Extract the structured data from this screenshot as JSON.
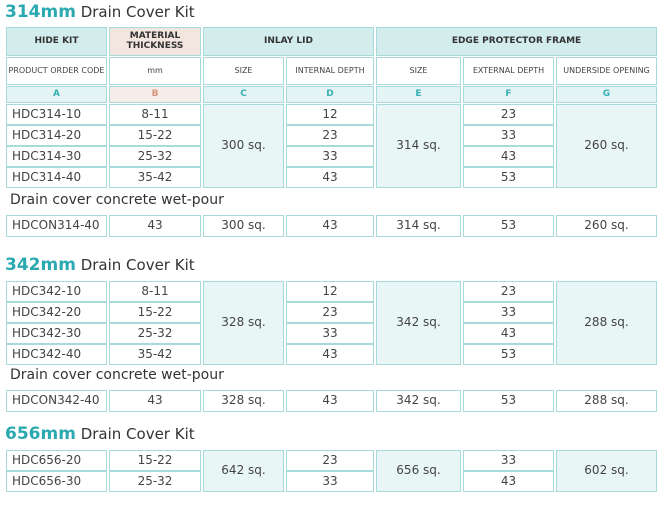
{
  "header": {
    "groups": [
      "HIDE KIT",
      "MATERIAL THICKNESS",
      "INLAY LID",
      "EDGE PROTECTOR FRAME"
    ],
    "columns": [
      "PRODUCT ORDER CODE",
      "mm",
      "SIZE",
      "INTERNAL DEPTH",
      "SIZE",
      "EXTERNAL DEPTH",
      "UNDERSIDE OPENING"
    ],
    "letters": [
      "A",
      "B",
      "C",
      "D",
      "E",
      "F",
      "G"
    ]
  },
  "sections": [
    {
      "size": "314mm",
      "title": "Drain Cover Kit",
      "rows": [
        [
          "HDC314-10",
          "8-11",
          "12",
          "23"
        ],
        [
          "HDC314-20",
          "15-22",
          "23",
          "33"
        ],
        [
          "HDC314-30",
          "25-32",
          "33",
          "43"
        ],
        [
          "HDC314-40",
          "35-42",
          "43",
          "53"
        ]
      ],
      "shared": [
        "300 sq.",
        "314 sq.",
        "260 sq."
      ],
      "wet_pour": {
        "heading": "Drain cover concrete wet-pour",
        "row": [
          "HDCON314-40",
          "43",
          "300 sq.",
          "43",
          "314 sq.",
          "53",
          "260 sq."
        ]
      }
    },
    {
      "size": "342mm",
      "title": "Drain Cover Kit",
      "rows": [
        [
          "HDC342-10",
          "8-11",
          "12",
          "23"
        ],
        [
          "HDC342-20",
          "15-22",
          "23",
          "33"
        ],
        [
          "HDC342-30",
          "25-32",
          "33",
          "43"
        ],
        [
          "HDC342-40",
          "35-42",
          "43",
          "53"
        ]
      ],
      "shared": [
        "328 sq.",
        "342 sq.",
        "288 sq."
      ],
      "wet_pour": {
        "heading": "Drain cover concrete wet-pour",
        "row": [
          "HDCON342-40",
          "43",
          "328 sq.",
          "43",
          "342 sq.",
          "53",
          "288 sq."
        ]
      }
    },
    {
      "size": "656mm",
      "title": "Drain Cover Kit",
      "rows": [
        [
          "HDC656-20",
          "15-22",
          "23",
          "33"
        ],
        [
          "HDC656-30",
          "25-32",
          "33",
          "43"
        ]
      ],
      "shared": [
        "642 sq.",
        "656 sq.",
        "602 sq."
      ]
    }
  ]
}
